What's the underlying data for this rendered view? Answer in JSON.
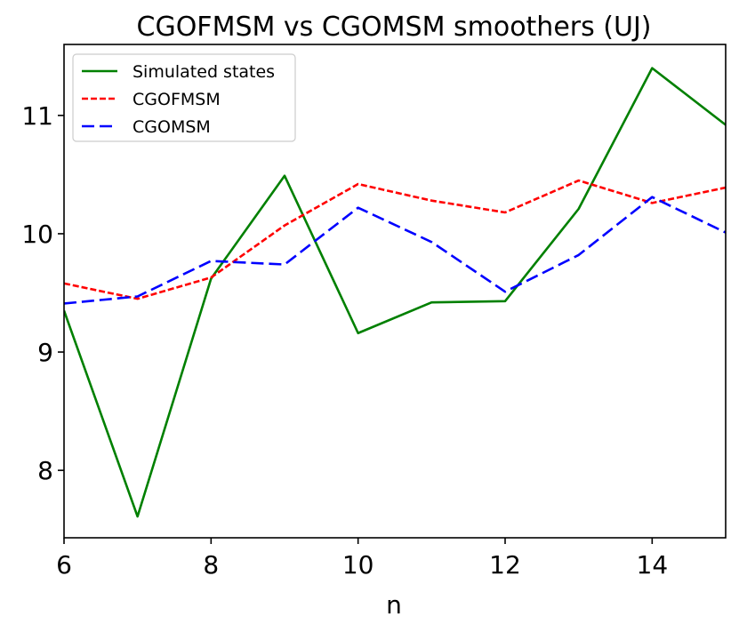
{
  "chart_data": {
    "type": "line",
    "title": "CGOFMSM vs CGOMSM smoothers (UJ)",
    "xlabel": "n",
    "ylabel": "",
    "xlim": [
      6,
      15
    ],
    "ylim": [
      7.43,
      11.6
    ],
    "xticks": [
      6,
      8,
      10,
      12,
      14
    ],
    "yticks": [
      8,
      9,
      10,
      11
    ],
    "grid": false,
    "legend_position": "top-left",
    "x": [
      6,
      7,
      8,
      9,
      10,
      11,
      12,
      13,
      14,
      15
    ],
    "series": [
      {
        "name": "Simulated states",
        "color": "#008000",
        "style": "solid",
        "values": [
          9.35,
          7.61,
          9.62,
          10.49,
          9.16,
          9.42,
          9.43,
          10.21,
          11.4,
          10.92
        ]
      },
      {
        "name": "CGOFMSM",
        "color": "#ff0000",
        "style": "dotted",
        "values": [
          9.58,
          9.45,
          9.63,
          10.07,
          10.42,
          10.28,
          10.18,
          10.45,
          10.26,
          10.39
        ]
      },
      {
        "name": "CGOMSM",
        "color": "#0000ff",
        "style": "dashed",
        "values": [
          9.41,
          9.47,
          9.77,
          9.74,
          10.22,
          9.93,
          9.51,
          9.82,
          10.31,
          10.01
        ]
      }
    ]
  }
}
